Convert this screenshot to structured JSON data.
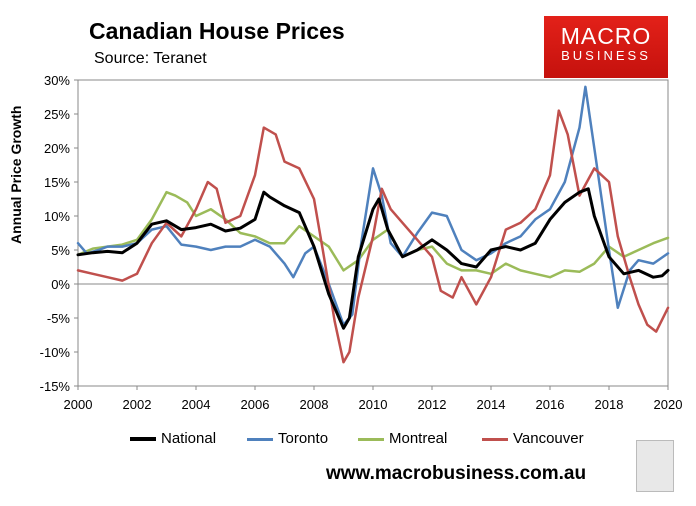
{
  "header": {
    "title": "Canadian House Prices",
    "subtitle": "Source: Teranet"
  },
  "logo": {
    "line1": "MACRO",
    "line2": "BUSINESS"
  },
  "footer": {
    "website": "www.macrobusiness.com.au"
  },
  "chart_data": {
    "type": "line",
    "title": "Canadian House Prices",
    "subtitle": "Source: Teranet",
    "xlabel": "",
    "ylabel": "Annual Price Growth",
    "xlim": [
      2000,
      2020
    ],
    "ylim": [
      -15,
      30
    ],
    "x_ticks": [
      "2000",
      "2002",
      "2004",
      "2006",
      "2008",
      "2010",
      "2012",
      "2014",
      "2016",
      "2018",
      "2020"
    ],
    "y_ticks": [
      "30%",
      "25%",
      "20%",
      "15%",
      "10%",
      "5%",
      "0%",
      "-5%",
      "-10%",
      "-15%"
    ],
    "legend_position": "bottom",
    "grid": false,
    "series": [
      {
        "name": "National",
        "color": "#000000",
        "x": [
          2000,
          2000.5,
          2001,
          2001.5,
          2002,
          2002.5,
          2003,
          2003.5,
          2004,
          2004.5,
          2005,
          2005.5,
          2006,
          2006.3,
          2006.5,
          2007,
          2007.5,
          2008,
          2008.5,
          2009,
          2009.2,
          2009.5,
          2010,
          2010.2,
          2010.5,
          2011,
          2011.5,
          2012,
          2012.5,
          2013,
          2013.5,
          2014,
          2014.5,
          2015,
          2015.5,
          2016,
          2016.5,
          2017,
          2017.3,
          2017.5,
          2018,
          2018.5,
          2019,
          2019.5,
          2019.8,
          2020
        ],
        "values": [
          4.3,
          4.6,
          4.8,
          4.6,
          6.0,
          8.8,
          9.3,
          8.0,
          8.3,
          8.8,
          7.8,
          8.2,
          9.5,
          13.5,
          12.8,
          11.5,
          10.5,
          5.5,
          -1.5,
          -6.5,
          -5.0,
          4.0,
          11.0,
          12.5,
          8.0,
          4.0,
          5.0,
          6.5,
          5.0,
          3.0,
          2.5,
          5.0,
          5.5,
          5.0,
          6.0,
          9.5,
          12.0,
          13.5,
          14.0,
          10.0,
          4.0,
          1.5,
          2.0,
          1.0,
          1.2,
          2.0
        ]
      },
      {
        "name": "Toronto",
        "color": "#4f81bd",
        "x": [
          2000,
          2000.3,
          2000.7,
          2001,
          2001.5,
          2002,
          2002.5,
          2003,
          2003.5,
          2004,
          2004.5,
          2005,
          2005.5,
          2006,
          2006.5,
          2007,
          2007.3,
          2007.7,
          2008,
          2008.5,
          2009,
          2009.3,
          2009.6,
          2010,
          2010.3,
          2010.6,
          2011,
          2011.5,
          2012,
          2012.5,
          2013,
          2013.5,
          2014,
          2014.5,
          2015,
          2015.5,
          2016,
          2016.5,
          2017,
          2017.2,
          2017.5,
          2018,
          2018.3,
          2018.7,
          2019,
          2019.5,
          2020
        ],
        "values": [
          6.0,
          4.5,
          5.0,
          5.5,
          5.5,
          6.0,
          8.0,
          8.5,
          5.8,
          5.5,
          5.0,
          5.5,
          5.5,
          6.5,
          5.5,
          3.0,
          1.0,
          4.5,
          5.5,
          0.0,
          -6.0,
          -4.5,
          6.0,
          17.0,
          13.0,
          6.0,
          4.0,
          7.5,
          10.5,
          10.0,
          5.0,
          3.5,
          4.5,
          6.0,
          7.0,
          9.5,
          11.0,
          15.0,
          23.0,
          29.0,
          20.0,
          5.0,
          -3.5,
          2.0,
          3.5,
          3.0,
          4.5
        ]
      },
      {
        "name": "Montreal",
        "color": "#9bbb59",
        "x": [
          2000,
          2000.5,
          2001,
          2001.5,
          2002,
          2002.5,
          2003,
          2003.3,
          2003.7,
          2004,
          2004.5,
          2005,
          2005.5,
          2006,
          2006.5,
          2007,
          2007.5,
          2008,
          2008.5,
          2009,
          2009.5,
          2010,
          2010.5,
          2011,
          2011.5,
          2012,
          2012.5,
          2013,
          2013.5,
          2014,
          2014.5,
          2015,
          2015.5,
          2016,
          2016.5,
          2017,
          2017.5,
          2018,
          2018.5,
          2019,
          2019.5,
          2020
        ],
        "values": [
          4.3,
          5.2,
          5.5,
          5.8,
          6.5,
          9.5,
          13.5,
          13.0,
          12.0,
          10.0,
          11.0,
          9.5,
          7.5,
          7.0,
          6.0,
          6.0,
          8.5,
          7.0,
          5.5,
          2.0,
          3.5,
          6.5,
          8.0,
          4.0,
          5.0,
          5.5,
          3.0,
          2.0,
          2.0,
          1.5,
          3.0,
          2.0,
          1.5,
          1.0,
          2.0,
          1.8,
          3.0,
          5.5,
          4.0,
          5.0,
          6.0,
          6.8
        ]
      },
      {
        "name": "Vancouver",
        "color": "#c0504d",
        "x": [
          2000,
          2000.5,
          2001,
          2001.5,
          2002,
          2002.5,
          2003,
          2003.5,
          2004,
          2004.4,
          2004.7,
          2005,
          2005.5,
          2006,
          2006.3,
          2006.7,
          2007,
          2007.5,
          2008,
          2008.3,
          2008.7,
          2009,
          2009.2,
          2009.5,
          2010,
          2010.3,
          2010.6,
          2011,
          2011.5,
          2012,
          2012.3,
          2012.7,
          2013,
          2013.5,
          2014,
          2014.5,
          2015,
          2015.5,
          2016,
          2016.3,
          2016.6,
          2017,
          2017.5,
          2018,
          2018.3,
          2018.7,
          2019,
          2019.3,
          2019.6,
          2020
        ],
        "values": [
          2.0,
          1.5,
          1.0,
          0.5,
          1.5,
          6.0,
          9.0,
          7.0,
          11.0,
          15.0,
          14.0,
          9.0,
          10.0,
          16.0,
          23.0,
          22.0,
          18.0,
          17.0,
          12.5,
          5.0,
          -5.5,
          -11.5,
          -10.0,
          -2.0,
          7.0,
          14.0,
          11.0,
          9.0,
          6.5,
          4.0,
          -1.0,
          -2.0,
          1.0,
          -3.0,
          1.0,
          8.0,
          9.0,
          11.0,
          16.0,
          25.5,
          22.0,
          13.0,
          17.0,
          15.0,
          7.0,
          1.0,
          -3.0,
          -6.0,
          -7.0,
          -3.5
        ]
      }
    ]
  }
}
